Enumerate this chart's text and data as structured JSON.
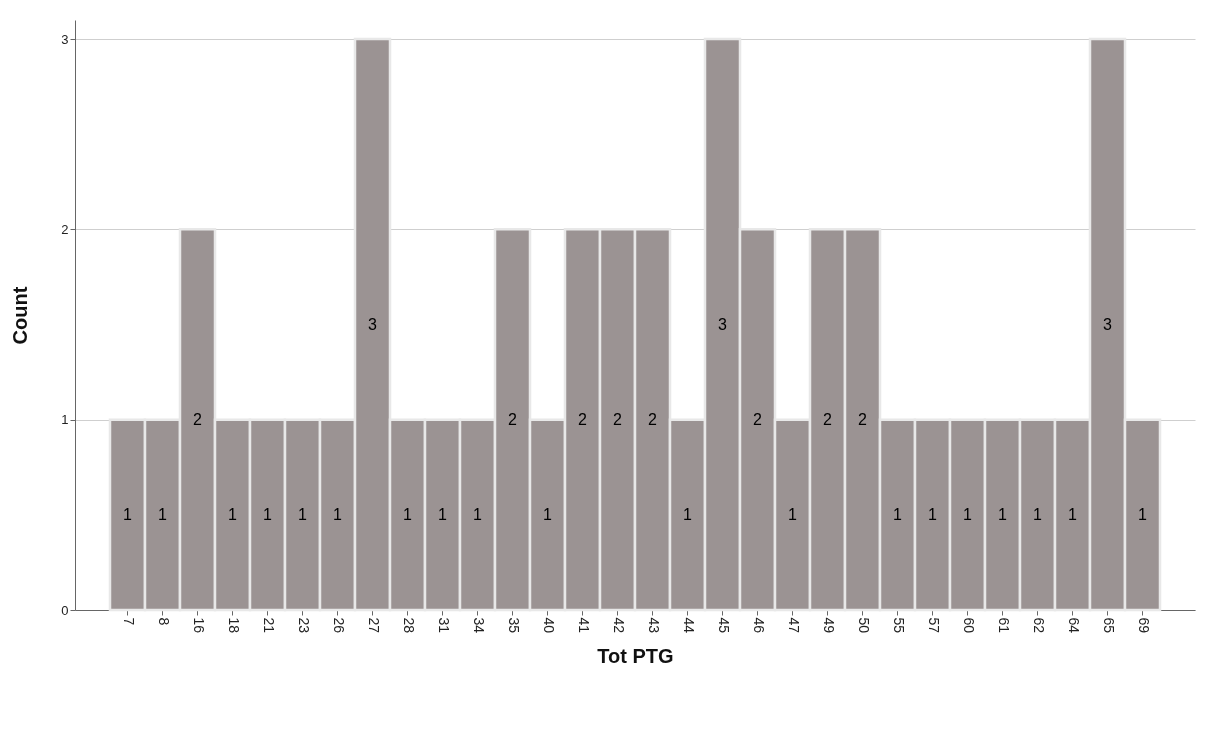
{
  "chart_data": {
    "type": "bar",
    "xlabel": "Tot PTG",
    "ylabel": "Count",
    "categories": [
      "7",
      "8",
      "16",
      "18",
      "21",
      "23",
      "26",
      "27",
      "28",
      "31",
      "34",
      "35",
      "40",
      "41",
      "42",
      "43",
      "44",
      "45",
      "46",
      "47",
      "49",
      "50",
      "55",
      "57",
      "60",
      "61",
      "62",
      "64",
      "65",
      "69"
    ],
    "values": [
      1,
      1,
      2,
      1,
      1,
      1,
      1,
      3,
      1,
      1,
      1,
      2,
      1,
      2,
      2,
      2,
      1,
      3,
      2,
      1,
      2,
      2,
      1,
      1,
      1,
      1,
      1,
      1,
      3,
      1
    ],
    "color": "#9b9393",
    "ylim": [
      0,
      3.1
    ],
    "yticks": [
      0,
      1,
      2,
      3
    ],
    "grid": "y",
    "data_labels": true
  }
}
